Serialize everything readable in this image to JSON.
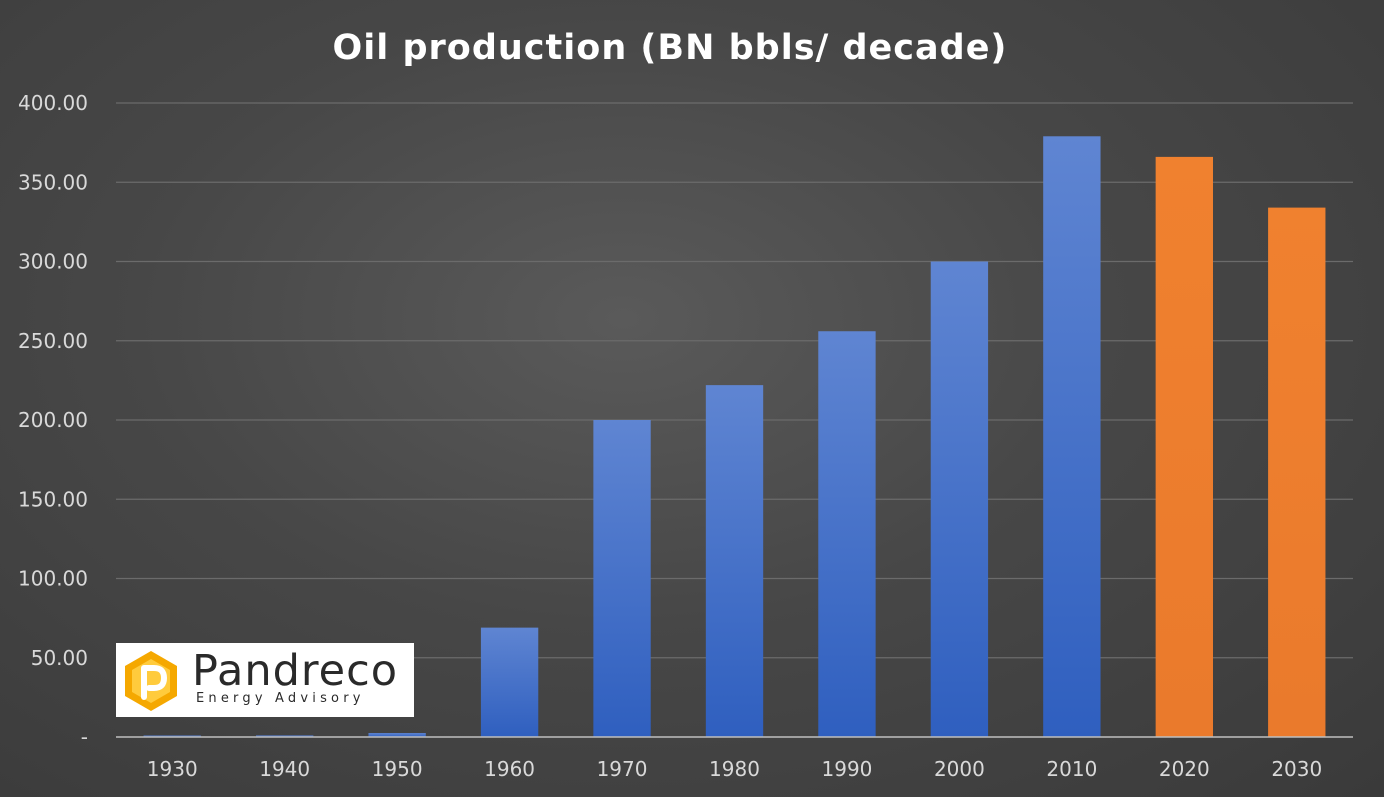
{
  "chart_data": {
    "type": "bar",
    "title": "Oil production (BN bbls/ decade)",
    "xlabel": "",
    "ylabel": "",
    "ylim": [
      0,
      400
    ],
    "y_ticks": [
      {
        "value": 0,
        "label": "-"
      },
      {
        "value": 50,
        "label": "50.00"
      },
      {
        "value": 100,
        "label": "100.00"
      },
      {
        "value": 150,
        "label": "150.00"
      },
      {
        "value": 200,
        "label": "200.00"
      },
      {
        "value": 250,
        "label": "250.00"
      },
      {
        "value": 300,
        "label": "300.00"
      },
      {
        "value": 350,
        "label": "350.00"
      },
      {
        "value": 400,
        "label": "400.00"
      }
    ],
    "grid": true,
    "legend": "none",
    "categories": [
      "1930",
      "1940",
      "1950",
      "1960",
      "1970",
      "1980",
      "1990",
      "2000",
      "2010",
      "2020",
      "2030"
    ],
    "values": [
      0.5,
      1,
      2.5,
      69,
      200,
      222,
      256,
      300,
      379,
      366,
      334
    ],
    "bar_colors": [
      "#4472c4",
      "#4472c4",
      "#4472c4",
      "#4472c4",
      "#4472c4",
      "#4472c4",
      "#4472c4",
      "#4472c4",
      "#4472c4",
      "#ed7d31",
      "#ed7d31"
    ]
  },
  "logo": {
    "name": "Pandreco",
    "tagline": "Energy Advisory",
    "colors": {
      "mark_outer": "#f5a800",
      "mark_inner": "#ffd24a",
      "text": "#2a2a2a"
    }
  },
  "colors": {
    "background": "#474747",
    "gridline": "#6b6b6b",
    "axis": "#bfbfbf",
    "tick_text": "#d9d9d9",
    "title_text": "#ffffff"
  }
}
